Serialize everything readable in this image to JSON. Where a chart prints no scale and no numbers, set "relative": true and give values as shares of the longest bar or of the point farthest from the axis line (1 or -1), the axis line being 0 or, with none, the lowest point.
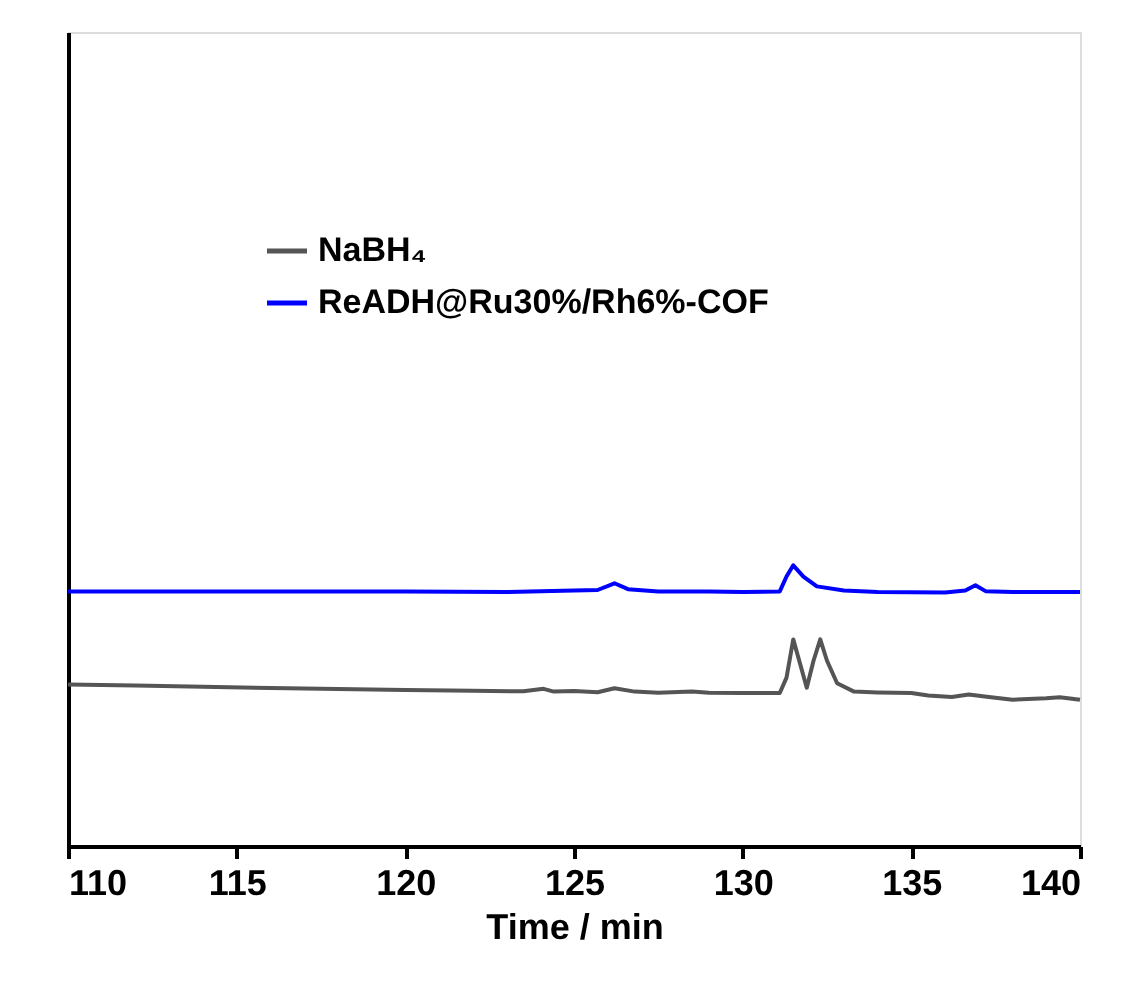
{
  "chart_data": {
    "type": "line",
    "xlabel": "Time / min",
    "relative": true,
    "xlim": [
      110,
      140
    ],
    "xticks": [
      110,
      115,
      120,
      125,
      130,
      135,
      140
    ],
    "grid": false,
    "legend": "top left",
    "tick_labels": "x",
    "marker": "none",
    "line_style": "solid",
    "series": [
      {
        "name": "NaBH₄",
        "color": "#555555",
        "x": [
          110,
          112,
          114,
          116,
          118,
          120,
          122,
          123.5,
          124.1,
          124.4,
          125,
          125.7,
          126.2,
          126.8,
          127.5,
          128.5,
          129,
          130,
          131.1,
          131.3,
          131.5,
          131.7,
          131.9,
          132.1,
          132.3,
          132.5,
          132.8,
          133.3,
          134,
          135,
          135.5,
          136.2,
          136.7,
          137.3,
          138,
          139,
          139.4,
          140
        ],
        "values": [
          0.575,
          0.572,
          0.567,
          0.563,
          0.559,
          0.556,
          0.553,
          0.551,
          0.56,
          0.55,
          0.552,
          0.548,
          0.562,
          0.55,
          0.546,
          0.55,
          0.546,
          0.545,
          0.545,
          0.6,
          0.736,
          0.65,
          0.564,
          0.66,
          0.736,
          0.66,
          0.58,
          0.55,
          0.547,
          0.545,
          0.536,
          0.531,
          0.54,
          0.531,
          0.521,
          0.526,
          0.53,
          0.521
        ]
      },
      {
        "name": "ReADH@Ru30%/Rh6%-COF",
        "color": "#0000ff",
        "x": [
          110,
          115,
          120,
          123,
          125,
          125.7,
          126.2,
          126.6,
          127.5,
          129,
          130,
          131.1,
          131.3,
          131.5,
          131.8,
          132.2,
          133,
          134,
          136,
          136.6,
          136.9,
          137.2,
          138,
          140
        ],
        "values": [
          0.907,
          0.907,
          0.907,
          0.905,
          0.91,
          0.912,
          0.936,
          0.915,
          0.907,
          0.907,
          0.905,
          0.907,
          0.96,
          1.0,
          0.96,
          0.925,
          0.91,
          0.905,
          0.903,
          0.91,
          0.929,
          0.908,
          0.905,
          0.905
        ]
      }
    ]
  }
}
